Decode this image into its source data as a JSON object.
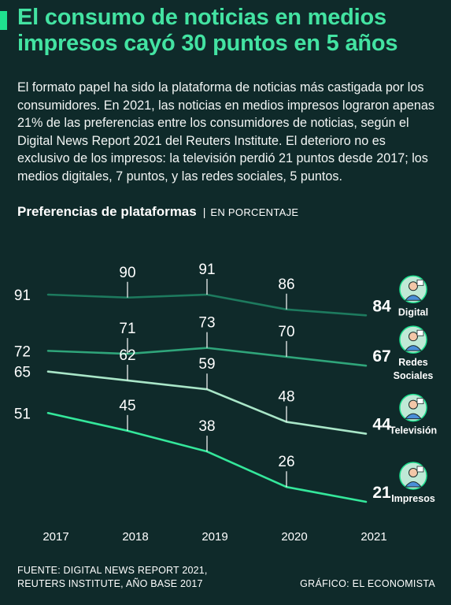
{
  "header": {
    "title_line1": "El consumo de noticias en medios",
    "title_line2": "impresos cayó 30 puntos en 5 años"
  },
  "intro": "El formato papel ha sido la plataforma de noticias más castigada por los consumidores. En 2021, las noticias en medios impresos lograron apenas 21% de las preferencias entre los consumidores de noticias, según el Digital News Report 2021 del Reuters Institute. El deterioro no es exclusivo de los impresos: la televisión perdió 21 puntos desde 2017; los medios digitales, 7 puntos, y las redes sociales, 5 puntos.",
  "chart_title": "Preferencias de plataformas",
  "chart_separator": "|",
  "chart_unit": "EN PORCENTAJE",
  "colors": {
    "background": "#0f2a2a",
    "title": "#43e3a2",
    "digital": "#1d7a5e",
    "redes": "#2fa57a",
    "television": "#a9e6c8",
    "impresos": "#34e79b"
  },
  "chart_data": {
    "type": "line",
    "x": [
      "2017",
      "2018",
      "2019",
      "2020",
      "2021"
    ],
    "series": [
      {
        "name": "Digital",
        "values": [
          91,
          90,
          91,
          86,
          84
        ],
        "icon": "laptop-reader-icon"
      },
      {
        "name": "Redes Sociales",
        "values": [
          72,
          71,
          73,
          70,
          67
        ],
        "icon": "smartphone-user-icon"
      },
      {
        "name": "Televisión",
        "values": [
          65,
          62,
          59,
          48,
          44
        ],
        "icon": "tv-viewer-icon"
      },
      {
        "name": "Impresos",
        "values": [
          51,
          45,
          38,
          26,
          21
        ],
        "icon": "newspaper-reader-icon"
      }
    ],
    "ylim": [
      21,
      91
    ],
    "grid": false,
    "legend": "right"
  },
  "footer": {
    "source_line1": "FUENTE: DIGITAL NEWS REPORT 2021,",
    "source_line2": "REUTERS INSTITUTE, AÑO BASE 2017",
    "credit": "GRÁFICO: EL ECONOMISTA"
  }
}
